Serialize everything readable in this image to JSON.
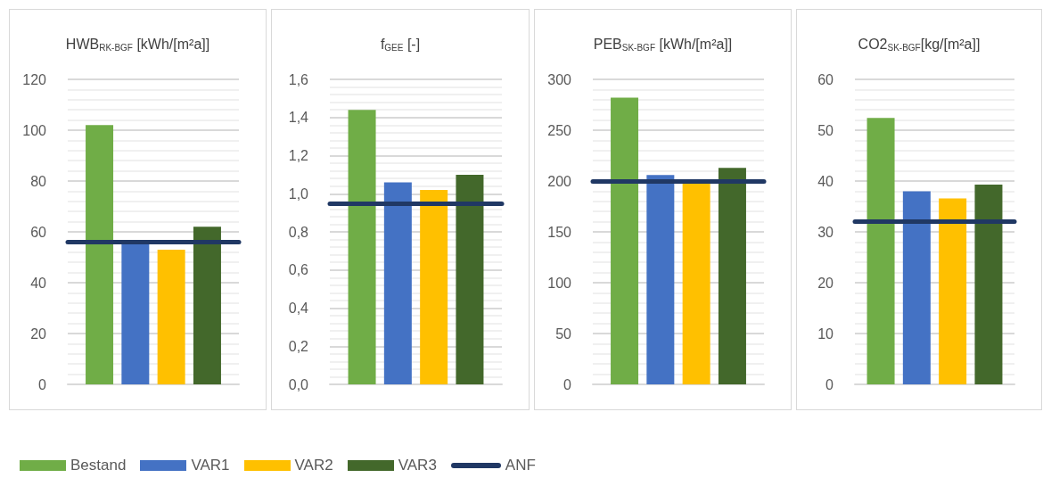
{
  "chart_data": [
    {
      "type": "bar",
      "title": "HWB$_{RK-BGF}$ [kWh/[m²a]]",
      "categories": [
        null
      ],
      "legend": "bottom",
      "grid": true,
      "series": [
        {
          "name": "Bestand",
          "color": "#70ad47",
          "values": [
            102
          ]
        },
        {
          "name": "VAR1",
          "color": "#4472c4",
          "values": [
            56
          ]
        },
        {
          "name": "VAR2",
          "color": "#ffc000",
          "values": [
            53
          ]
        },
        {
          "name": "VAR3",
          "color": "#43682b",
          "values": [
            62
          ]
        }
      ],
      "ylim": [
        0,
        120
      ],
      "yticks": [
        0,
        20,
        40,
        60,
        80,
        100,
        120
      ],
      "ref_lines": [
        {
          "axis": "y",
          "value": 56,
          "label": "ANF",
          "color": "#203864"
        }
      ]
    },
    {
      "type": "bar",
      "title": "f$_{GEE}$ [-]",
      "categories": [
        null
      ],
      "grid": true,
      "series": [
        {
          "color": "#70ad47",
          "values": [
            1.44
          ]
        },
        {
          "color": "#4472c4",
          "values": [
            1.06
          ]
        },
        {
          "color": "#ffc000",
          "values": [
            1.02
          ]
        },
        {
          "color": "#43682b",
          "values": [
            1.1
          ]
        }
      ],
      "ylim": [
        0,
        1.6
      ],
      "yticks": [
        {
          "value": 0,
          "label": "0,0"
        },
        {
          "value": 0.2,
          "label": "0,2"
        },
        {
          "value": 0.4,
          "label": "0,4"
        },
        {
          "value": 0.6,
          "label": "0,6"
        },
        {
          "value": 0.8,
          "label": "0,8"
        },
        {
          "value": 1.0,
          "label": "1,0"
        },
        {
          "value": 1.2,
          "label": "1,2"
        },
        {
          "value": 1.4,
          "label": "1,4"
        },
        {
          "value": 1.6,
          "label": "1,6"
        }
      ],
      "ref_lines": [
        {
          "axis": "y",
          "value": 0.95,
          "color": "#203864"
        }
      ]
    },
    {
      "type": "bar",
      "title": "PEB$_{SK-BGF}$ [kWh/[m²a]]",
      "categories": [
        null
      ],
      "grid": true,
      "series": [
        {
          "color": "#70ad47",
          "values": [
            282
          ]
        },
        {
          "color": "#4472c4",
          "values": [
            206
          ]
        },
        {
          "color": "#ffc000",
          "values": [
            198
          ]
        },
        {
          "color": "#43682b",
          "values": [
            213
          ]
        }
      ],
      "ylim": [
        0,
        300
      ],
      "yticks": [
        0,
        50,
        100,
        150,
        200,
        250,
        300
      ],
      "ref_lines": [
        {
          "axis": "y",
          "value": 200,
          "color": "#203864"
        }
      ]
    },
    {
      "type": "bar",
      "title": "CO2$_{SK-BGF}$[kg/[m²a]]",
      "categories": [
        null
      ],
      "grid": true,
      "series": [
        {
          "color": "#70ad47",
          "values": [
            52.4
          ]
        },
        {
          "color": "#4472c4",
          "values": [
            38
          ]
        },
        {
          "color": "#ffc000",
          "values": [
            36.6
          ]
        },
        {
          "color": "#43682b",
          "values": [
            39.3
          ]
        }
      ],
      "ylim": [
        0,
        60
      ],
      "yticks": [
        0,
        10,
        20,
        30,
        40,
        50,
        60
      ],
      "ref_lines": [
        {
          "axis": "y",
          "value": 32,
          "color": "#203864"
        }
      ]
    }
  ]
}
